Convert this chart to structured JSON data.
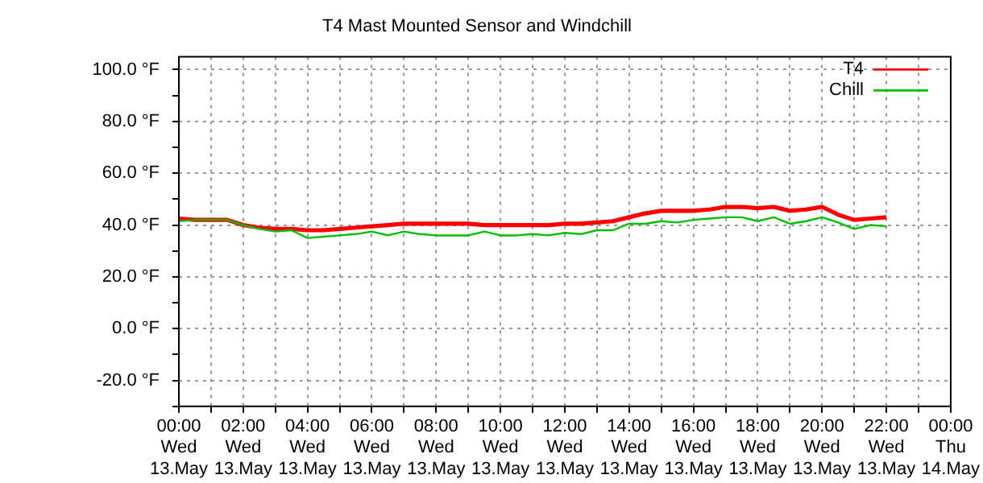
{
  "chart_data": {
    "type": "line",
    "title": "T4 Mast Mounted Sensor and Windchill",
    "categories": [
      "00:00\nWed\n13.May",
      null,
      null,
      null,
      "02:00\nWed\n13.May",
      null,
      null,
      null,
      "04:00\nWed\n13.May",
      null,
      null,
      null,
      "06:00\nWed\n13.May",
      null,
      null,
      null,
      "08:00\nWed\n13.May",
      null,
      null,
      null,
      "10:00\nWed\n13.May",
      null,
      null,
      null,
      "12:00\nWed\n13.May",
      null,
      null,
      null,
      "14:00\nWed\n13.May",
      null,
      null,
      null,
      "16:00\nWed\n13.May",
      null,
      null,
      null,
      "18:00\nWed\n13.May",
      null,
      null,
      null,
      "20:00\nWed\n13.May",
      null,
      null,
      null,
      "22:00\nWed\n13.May",
      null,
      null,
      null,
      "00:00\nThu\n14.May"
    ],
    "ylim": [
      -30,
      105
    ],
    "yticks": [
      {
        "value": -30,
        "label": null
      },
      {
        "value": -20,
        "label": "-20.0 °F"
      },
      {
        "value": -10,
        "label": null
      },
      {
        "value": 0,
        "label": "0.0 °F"
      },
      {
        "value": 10,
        "label": null
      },
      {
        "value": 20,
        "label": "20.0 °F"
      },
      {
        "value": 30,
        "label": null
      },
      {
        "value": 40,
        "label": "40.0 °F"
      },
      {
        "value": 50,
        "label": null
      },
      {
        "value": 60,
        "label": "60.0 °F"
      },
      {
        "value": 70,
        "label": null
      },
      {
        "value": 80,
        "label": "80.0 °F"
      },
      {
        "value": 90,
        "label": null
      },
      {
        "value": 100,
        "label": "100.0 °F"
      }
    ],
    "series": [
      {
        "name": "T4",
        "color": "#ff0000",
        "values": [
          42.5,
          42,
          42,
          42,
          40,
          39,
          38.5,
          38.5,
          38,
          38,
          38.5,
          39,
          39.5,
          40,
          40.5,
          40.5,
          40.5,
          40.5,
          40.5,
          40,
          40,
          40,
          40,
          40,
          40.5,
          40.5,
          41,
          41.5,
          43,
          44.5,
          45.5,
          45.5,
          45.5,
          46,
          47,
          47,
          46.5,
          47,
          45.5,
          46,
          47,
          44,
          42,
          42.5,
          43,
          null,
          null,
          null,
          null
        ]
      },
      {
        "name": "Chill",
        "color": "#00c000",
        "values": [
          41.5,
          42,
          42,
          42,
          40,
          38.5,
          37.5,
          38,
          35,
          35.5,
          36,
          36.5,
          37.5,
          36,
          37.5,
          36.5,
          36,
          36,
          36,
          37.5,
          36,
          36,
          36.5,
          36,
          37,
          36.5,
          38,
          38,
          40.5,
          40.5,
          41.5,
          41,
          42,
          42.5,
          43,
          43,
          41.5,
          43,
          40.5,
          41.5,
          43,
          41,
          38.5,
          40,
          39.5,
          null,
          null,
          null,
          null
        ]
      }
    ],
    "grid": true,
    "legend": "top right",
    "marker": "none",
    "line_style": "solid"
  }
}
